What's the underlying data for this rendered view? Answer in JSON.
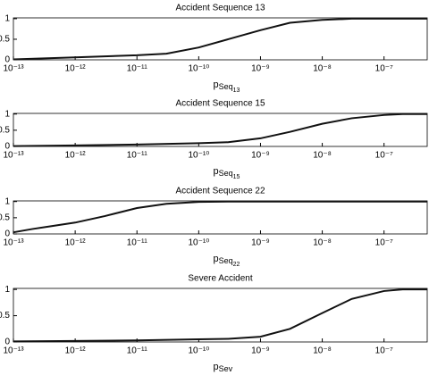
{
  "chart_data": [
    {
      "type": "line",
      "title": "Accident Sequence 13",
      "xlabel": {
        "base": "p",
        "sub": "Seq",
        "subsub": "13"
      },
      "log_x": true,
      "xlim": [
        1e-13,
        5e-07
      ],
      "ylim": [
        0,
        1.02
      ],
      "xticks": [
        {
          "value": 1e-13,
          "label": "10⁻¹³"
        },
        {
          "value": 1e-12,
          "label": "10⁻¹²"
        },
        {
          "value": 1e-11,
          "label": "10⁻¹¹"
        },
        {
          "value": 1e-10,
          "label": "10⁻¹⁰"
        },
        {
          "value": 1e-09,
          "label": "10⁻⁹"
        },
        {
          "value": 1e-08,
          "label": "10⁻⁸"
        },
        {
          "value": 1e-07,
          "label": "10⁻⁷"
        }
      ],
      "yticks": [
        0,
        0.5,
        1
      ],
      "color": "#111111",
      "x": [
        1e-13,
        1e-12,
        1e-11,
        3e-11,
        1e-10,
        3e-10,
        1e-09,
        3e-09,
        1e-08,
        3e-08,
        5e-07
      ],
      "values": [
        0.01,
        0.06,
        0.11,
        0.15,
        0.3,
        0.5,
        0.72,
        0.9,
        0.97,
        1.0,
        1.0
      ]
    },
    {
      "type": "line",
      "title": "Accident Sequence 15",
      "xlabel": {
        "base": "p",
        "sub": "Seq",
        "subsub": "15"
      },
      "log_x": true,
      "xlim": [
        1e-13,
        5e-07
      ],
      "ylim": [
        0,
        1.02
      ],
      "xticks": [
        {
          "value": 1e-13,
          "label": "10⁻¹³"
        },
        {
          "value": 1e-12,
          "label": "10⁻¹²"
        },
        {
          "value": 1e-11,
          "label": "10⁻¹¹"
        },
        {
          "value": 1e-10,
          "label": "10⁻¹⁰"
        },
        {
          "value": 1e-09,
          "label": "10⁻⁹"
        },
        {
          "value": 1e-08,
          "label": "10⁻⁸"
        },
        {
          "value": 1e-07,
          "label": "10⁻⁷"
        }
      ],
      "yticks": [
        0,
        0.5,
        1
      ],
      "color": "#111111",
      "x": [
        1e-13,
        1e-12,
        1e-11,
        1e-10,
        3e-10,
        1e-09,
        3e-09,
        1e-08,
        3e-08,
        1e-07,
        2e-07,
        5e-07
      ],
      "values": [
        0.01,
        0.03,
        0.06,
        0.1,
        0.13,
        0.25,
        0.45,
        0.7,
        0.87,
        0.97,
        1.0,
        1.0
      ]
    },
    {
      "type": "line",
      "title": "Accident Sequence 22",
      "xlabel": {
        "base": "p",
        "sub": "Seq",
        "subsub": "22"
      },
      "log_x": true,
      "xlim": [
        1e-13,
        5e-07
      ],
      "ylim": [
        0,
        1.02
      ],
      "xticks": [
        {
          "value": 1e-13,
          "label": "10⁻¹³"
        },
        {
          "value": 1e-12,
          "label": "10⁻¹²"
        },
        {
          "value": 1e-11,
          "label": "10⁻¹¹"
        },
        {
          "value": 1e-10,
          "label": "10⁻¹⁰"
        },
        {
          "value": 1e-09,
          "label": "10⁻⁹"
        },
        {
          "value": 1e-08,
          "label": "10⁻⁸"
        },
        {
          "value": 1e-07,
          "label": "10⁻⁷"
        }
      ],
      "yticks": [
        0,
        0.5,
        1
      ],
      "color": "#111111",
      "x": [
        1e-13,
        2e-13,
        1e-12,
        3e-12,
        1e-11,
        3e-11,
        1e-10,
        3e-10,
        5e-07
      ],
      "values": [
        0.05,
        0.15,
        0.35,
        0.55,
        0.8,
        0.93,
        0.99,
        1.0,
        1.0
      ]
    },
    {
      "type": "line",
      "title": "Severe Accident",
      "xlabel": {
        "base": "p",
        "sub": "Sev"
      },
      "log_x": true,
      "xlim": [
        1e-13,
        5e-07
      ],
      "ylim": [
        0,
        1.02
      ],
      "xticks": [
        {
          "value": 1e-13,
          "label": "10⁻¹³"
        },
        {
          "value": 1e-12,
          "label": "10⁻¹²"
        },
        {
          "value": 1e-11,
          "label": "10⁻¹¹"
        },
        {
          "value": 1e-10,
          "label": "10⁻¹⁰"
        },
        {
          "value": 1e-09,
          "label": "10⁻⁹"
        },
        {
          "value": 1e-08,
          "label": "10⁻⁸"
        },
        {
          "value": 1e-07,
          "label": "10⁻⁷"
        }
      ],
      "yticks": [
        0,
        0.5,
        1
      ],
      "color": "#111111",
      "x": [
        1e-13,
        1e-12,
        1e-11,
        1e-10,
        3e-10,
        1e-09,
        3e-09,
        1e-08,
        3e-08,
        1e-07,
        2e-07,
        5e-07
      ],
      "values": [
        0.01,
        0.02,
        0.03,
        0.05,
        0.06,
        0.1,
        0.25,
        0.55,
        0.82,
        0.97,
        1.0,
        1.0
      ]
    }
  ]
}
